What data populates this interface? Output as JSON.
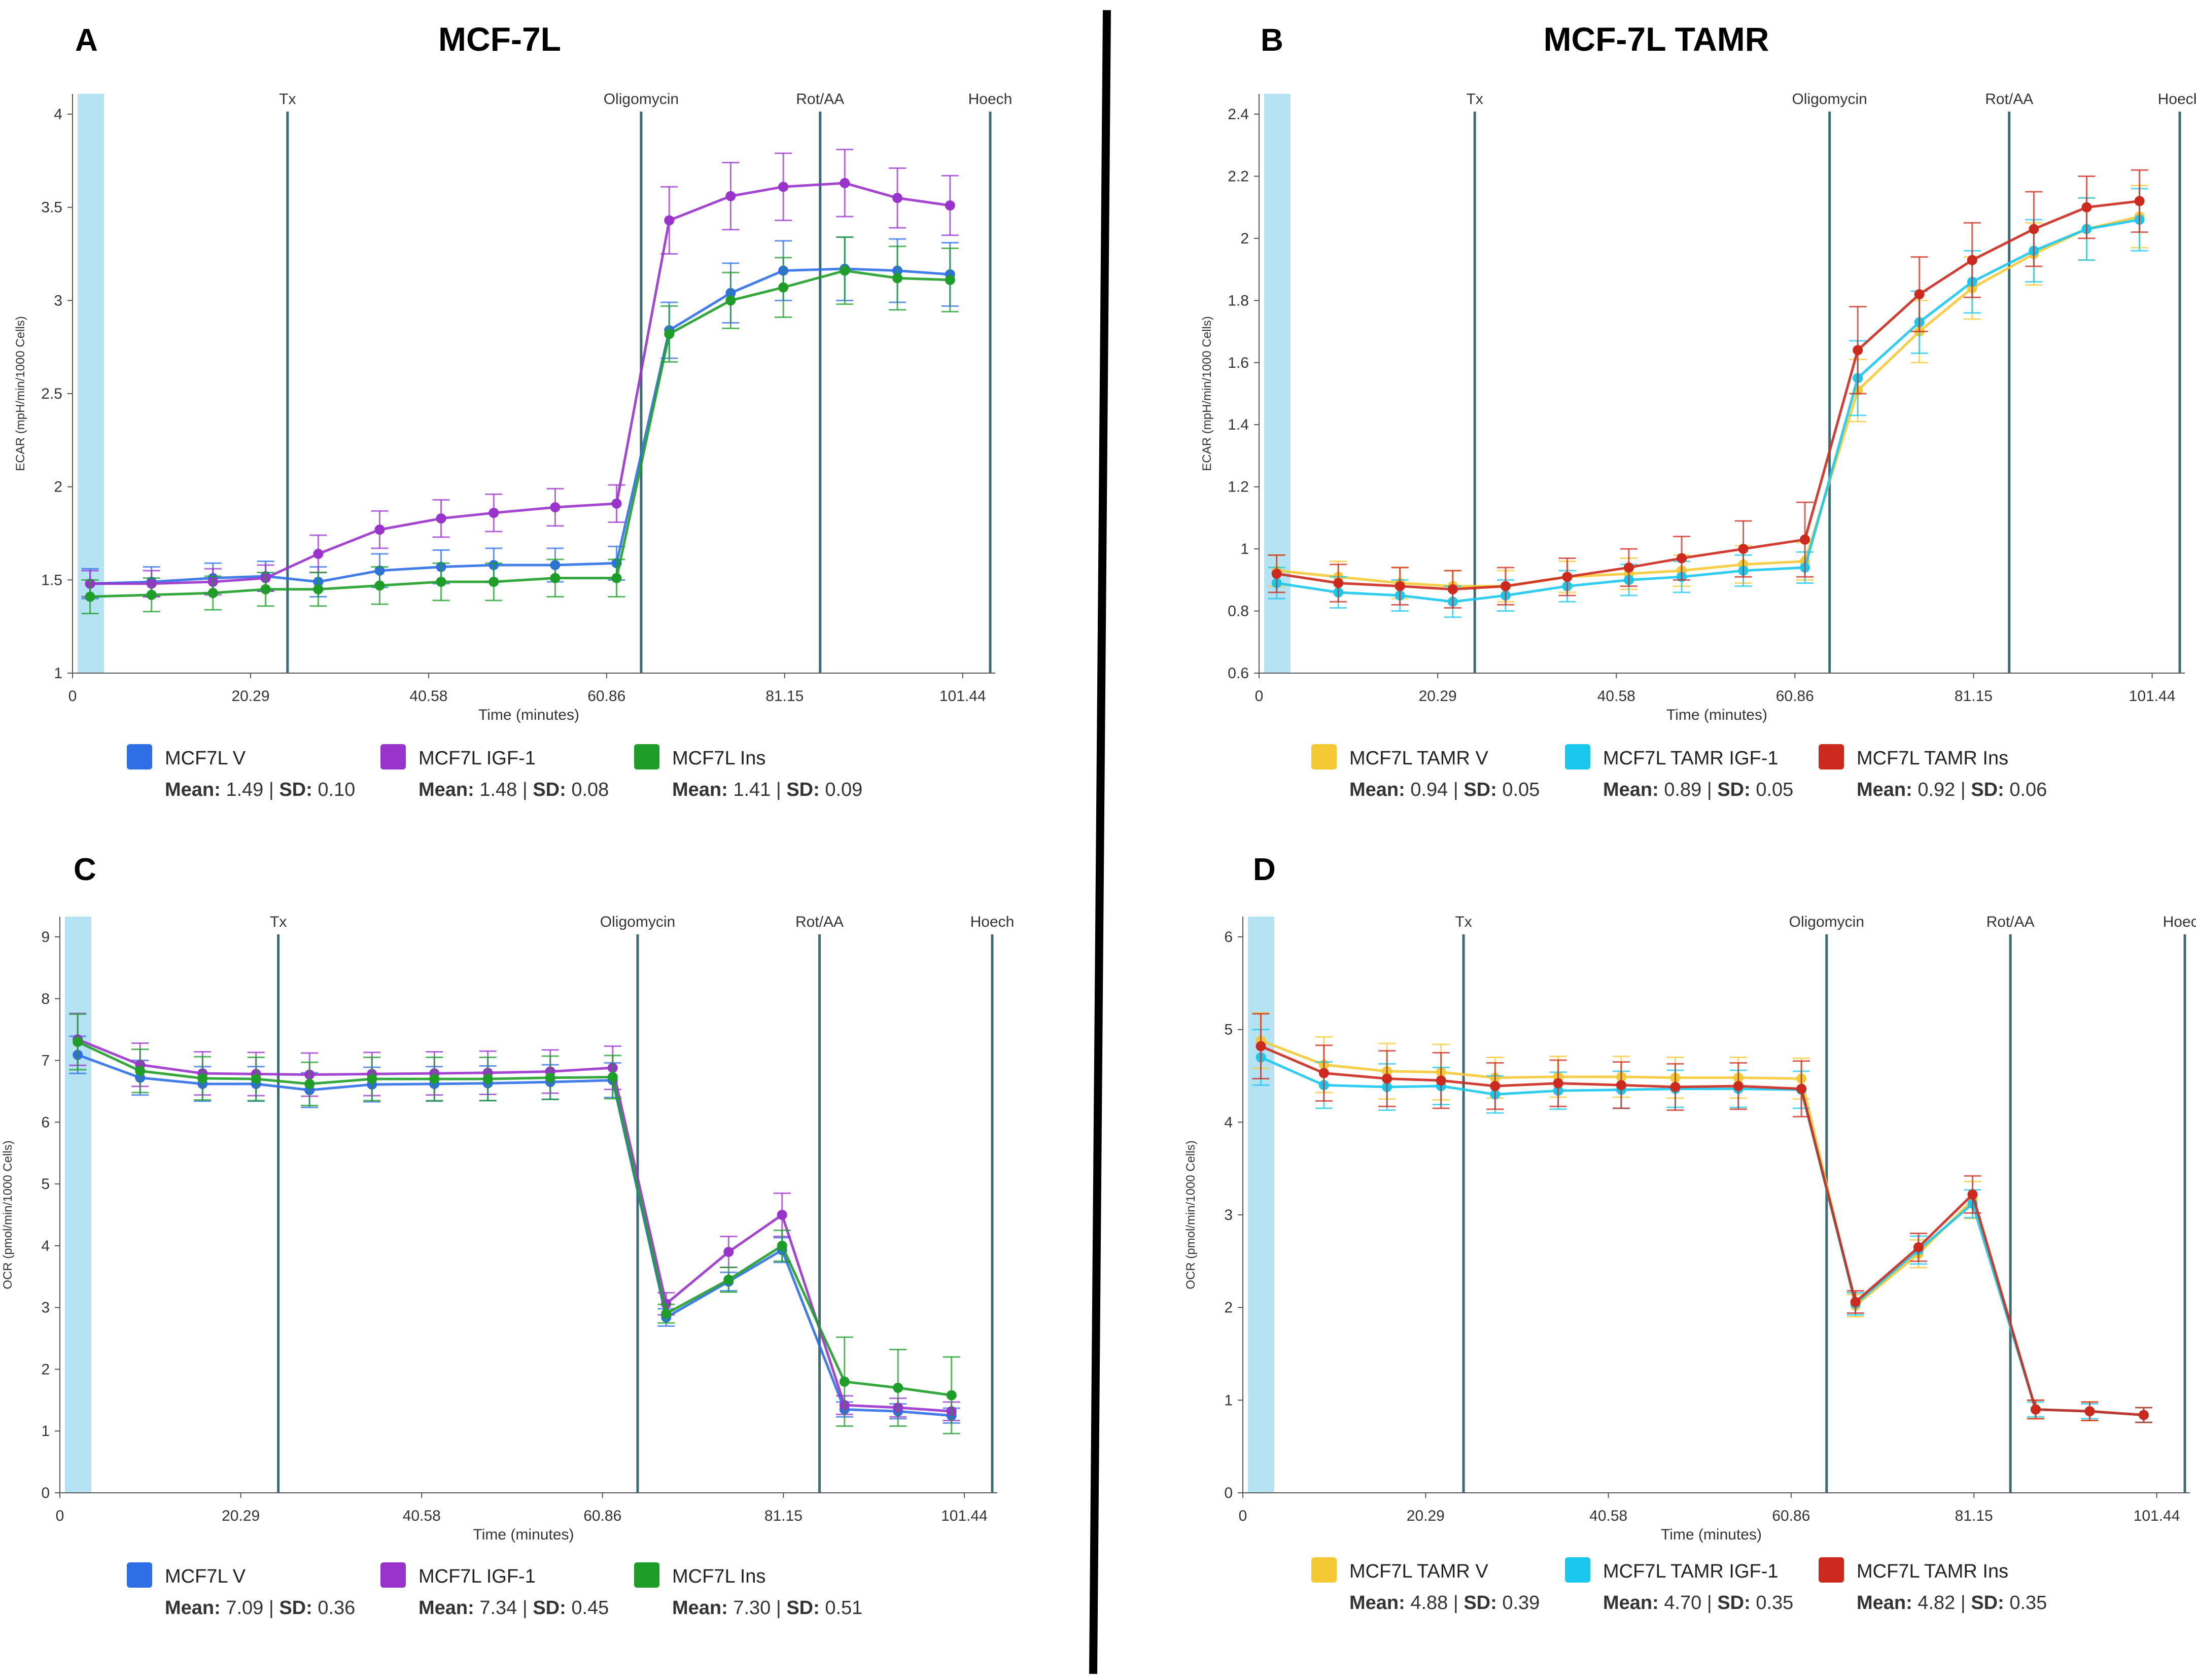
{
  "panels": [
    {
      "letter": "A",
      "title": "MCF-7L",
      "chart_data": {
        "type": "line",
        "ylabel": "ECAR (mpH/min/1000 Cells)",
        "xlabel": "Time (minutes)",
        "xlim": [
          0,
          104
        ],
        "ylim": [
          1,
          4
        ],
        "yticks": [
          1,
          1.5,
          2,
          2.5,
          3,
          3.5,
          4
        ],
        "xticks": [
          0,
          20.29,
          40.58,
          60.86,
          81.15,
          101.44
        ],
        "x": [
          2,
          9,
          16,
          22,
          28,
          35,
          42,
          48,
          55,
          62,
          68,
          75,
          81,
          88,
          94,
          100
        ],
        "injections": [
          {
            "label": "Tx",
            "x": 24.5
          },
          {
            "label": "Oligomycin",
            "x": 64.8
          },
          {
            "label": "Rot/AA",
            "x": 85.2
          },
          {
            "label": "Hoech",
            "x": 104.8
          }
        ],
        "series": [
          {
            "name": "MCF7L V",
            "color": "#2e6fe6",
            "mean": "1.49",
            "sd": "0.10",
            "values": [
              1.48,
              1.49,
              1.51,
              1.52,
              1.49,
              1.55,
              1.57,
              1.58,
              1.58,
              1.59,
              2.84,
              3.04,
              3.16,
              3.17,
              3.16,
              3.14
            ],
            "err": [
              0.08,
              0.08,
              0.08,
              0.08,
              0.08,
              0.09,
              0.09,
              0.09,
              0.09,
              0.09,
              0.15,
              0.16,
              0.16,
              0.17,
              0.17,
              0.17
            ]
          },
          {
            "name": "MCF7L IGF-1",
            "color": "#9933cc",
            "mean": "1.48",
            "sd": "0.08",
            "values": [
              1.48,
              1.48,
              1.49,
              1.51,
              1.64,
              1.77,
              1.83,
              1.86,
              1.89,
              1.91,
              3.43,
              3.56,
              3.61,
              3.63,
              3.55,
              3.51
            ],
            "err": [
              0.07,
              0.07,
              0.07,
              0.07,
              0.1,
              0.1,
              0.1,
              0.1,
              0.1,
              0.1,
              0.18,
              0.18,
              0.18,
              0.18,
              0.16,
              0.16
            ]
          },
          {
            "name": "MCF7L Ins",
            "color": "#1e9e28",
            "mean": "1.41",
            "sd": "0.09",
            "values": [
              1.41,
              1.42,
              1.43,
              1.45,
              1.45,
              1.47,
              1.49,
              1.49,
              1.51,
              1.51,
              2.82,
              3.0,
              3.07,
              3.16,
              3.12,
              3.11
            ],
            "err": [
              0.09,
              0.09,
              0.09,
              0.09,
              0.09,
              0.1,
              0.1,
              0.1,
              0.1,
              0.1,
              0.15,
              0.15,
              0.16,
              0.18,
              0.17,
              0.17
            ]
          }
        ]
      }
    },
    {
      "letter": "B",
      "title": "MCF-7L TAMR",
      "chart_data": {
        "type": "line",
        "ylabel": "ECAR (mpH/min/1000 Cells)",
        "xlabel": "Time (minutes)",
        "xlim": [
          0,
          104
        ],
        "ylim": [
          0.6,
          2.4
        ],
        "yticks": [
          0.6,
          0.8,
          1,
          1.2,
          1.4,
          1.6,
          1.8,
          2,
          2.2,
          2.4
        ],
        "xticks": [
          0,
          20.29,
          40.58,
          60.86,
          81.15,
          101.44
        ],
        "x": [
          2,
          9,
          16,
          22,
          28,
          35,
          42,
          48,
          55,
          62,
          68,
          75,
          81,
          88,
          94,
          100
        ],
        "injections": [
          {
            "label": "Tx",
            "x": 24.5
          },
          {
            "label": "Oligomycin",
            "x": 64.8
          },
          {
            "label": "Rot/AA",
            "x": 85.2
          },
          {
            "label": "Hoech",
            "x": 104.8
          }
        ],
        "series": [
          {
            "name": "MCF7L TAMR V",
            "color": "#f5c933",
            "mean": "0.94",
            "sd": "0.05",
            "values": [
              0.93,
              0.91,
              0.89,
              0.88,
              0.88,
              0.91,
              0.92,
              0.93,
              0.95,
              0.96,
              1.51,
              1.7,
              1.84,
              1.95,
              2.03,
              2.07
            ],
            "err": [
              0.05,
              0.05,
              0.05,
              0.05,
              0.05,
              0.05,
              0.05,
              0.05,
              0.06,
              0.06,
              0.1,
              0.1,
              0.1,
              0.1,
              0.1,
              0.1
            ]
          },
          {
            "name": "MCF7L TAMR IGF-1",
            "color": "#1ac8ee",
            "mean": "0.89",
            "sd": "0.05",
            "values": [
              0.89,
              0.86,
              0.85,
              0.83,
              0.85,
              0.88,
              0.9,
              0.91,
              0.93,
              0.94,
              1.55,
              1.73,
              1.86,
              1.96,
              2.03,
              2.06
            ],
            "err": [
              0.05,
              0.05,
              0.05,
              0.05,
              0.05,
              0.05,
              0.05,
              0.05,
              0.05,
              0.05,
              0.12,
              0.1,
              0.1,
              0.1,
              0.1,
              0.1
            ]
          },
          {
            "name": "MCF7L TAMR Ins",
            "color": "#cc2a1e",
            "mean": "0.92",
            "sd": "0.06",
            "values": [
              0.92,
              0.89,
              0.88,
              0.87,
              0.88,
              0.91,
              0.94,
              0.97,
              1.0,
              1.03,
              1.64,
              1.82,
              1.93,
              2.03,
              2.1,
              2.12
            ],
            "err": [
              0.06,
              0.06,
              0.06,
              0.06,
              0.06,
              0.06,
              0.06,
              0.07,
              0.09,
              0.12,
              0.14,
              0.12,
              0.12,
              0.12,
              0.1,
              0.1
            ]
          }
        ]
      }
    },
    {
      "letter": "C",
      "title": "",
      "chart_data": {
        "type": "line",
        "ylabel": "OCR (pmol/min/1000 Cells)",
        "xlabel": "Time (minutes)",
        "xlim": [
          0,
          104
        ],
        "ylim": [
          0,
          9
        ],
        "yticks": [
          0,
          1,
          2,
          3,
          4,
          5,
          6,
          7,
          8,
          9
        ],
        "xticks": [
          0,
          20.29,
          40.58,
          60.86,
          81.15,
          101.44
        ],
        "x": [
          2,
          9,
          16,
          22,
          28,
          35,
          42,
          48,
          55,
          62,
          68,
          75,
          81,
          88,
          94,
          100
        ],
        "injections": [
          {
            "label": "Tx",
            "x": 24.5
          },
          {
            "label": "Oligomycin",
            "x": 64.8
          },
          {
            "label": "Rot/AA",
            "x": 85.2
          },
          {
            "label": "Hoech",
            "x": 104.8
          }
        ],
        "series": [
          {
            "name": "MCF7L V",
            "color": "#2e6fe6",
            "mean": "7.09",
            "sd": "0.36",
            "values": [
              7.09,
              6.72,
              6.62,
              6.62,
              6.52,
              6.61,
              6.62,
              6.63,
              6.65,
              6.68,
              2.84,
              3.42,
              3.93,
              1.35,
              1.32,
              1.25
            ],
            "err": [
              0.3,
              0.28,
              0.28,
              0.28,
              0.28,
              0.28,
              0.28,
              0.28,
              0.28,
              0.28,
              0.14,
              0.15,
              0.2,
              0.12,
              0.12,
              0.12
            ]
          },
          {
            "name": "MCF7L IGF-1",
            "color": "#9933cc",
            "mean": "7.34",
            "sd": "0.45",
            "values": [
              7.34,
              6.93,
              6.79,
              6.78,
              6.77,
              6.78,
              6.79,
              6.8,
              6.82,
              6.88,
              3.06,
              3.9,
              4.5,
              1.42,
              1.38,
              1.32
            ],
            "err": [
              0.42,
              0.35,
              0.35,
              0.35,
              0.35,
              0.35,
              0.35,
              0.35,
              0.35,
              0.35,
              0.18,
              0.25,
              0.35,
              0.15,
              0.15,
              0.15
            ]
          },
          {
            "name": "MCF7L Ins",
            "color": "#1e9e28",
            "mean": "7.30",
            "sd": "0.51",
            "values": [
              7.3,
              6.83,
              6.71,
              6.7,
              6.62,
              6.7,
              6.7,
              6.7,
              6.72,
              6.73,
              2.9,
              3.45,
              4.0,
              1.8,
              1.7,
              1.58
            ],
            "err": [
              0.45,
              0.35,
              0.35,
              0.35,
              0.35,
              0.35,
              0.35,
              0.35,
              0.35,
              0.35,
              0.15,
              0.2,
              0.25,
              0.72,
              0.62,
              0.62
            ]
          }
        ]
      }
    },
    {
      "letter": "D",
      "title": "",
      "chart_data": {
        "type": "line",
        "ylabel": "OCR (pmol/min/1000 Cells)",
        "xlabel": "Time (minutes)",
        "xlim": [
          0,
          104
        ],
        "ylim": [
          0,
          6
        ],
        "yticks": [
          0,
          1,
          2,
          3,
          4,
          5,
          6
        ],
        "xticks": [
          0,
          20.29,
          40.58,
          60.86,
          81.15,
          101.44
        ],
        "x": [
          2,
          9,
          16,
          22,
          28,
          35,
          42,
          48,
          55,
          62,
          68,
          75,
          81,
          88,
          94,
          100
        ],
        "injections": [
          {
            "label": "Tx",
            "x": 24.5
          },
          {
            "label": "Oligomycin",
            "x": 64.8
          },
          {
            "label": "Rot/AA",
            "x": 85.2
          },
          {
            "label": "Hoech",
            "x": 104.8
          }
        ],
        "series": [
          {
            "name": "MCF7L TAMR V",
            "color": "#f5c933",
            "mean": "4.88",
            "sd": "0.39",
            "values": [
              4.88,
              4.62,
              4.55,
              4.54,
              4.48,
              4.49,
              4.49,
              4.48,
              4.48,
              4.47,
              2.02,
              2.58,
              3.16,
              0.9,
              0.88,
              0.84
            ],
            "err": [
              0.3,
              0.3,
              0.3,
              0.3,
              0.22,
              0.22,
              0.22,
              0.22,
              0.22,
              0.22,
              0.12,
              0.15,
              0.2,
              0.1,
              0.1,
              0.08
            ]
          },
          {
            "name": "MCF7L TAMR IGF-1",
            "color": "#1ac8ee",
            "mean": "4.70",
            "sd": "0.35",
            "values": [
              4.7,
              4.4,
              4.38,
              4.39,
              4.3,
              4.34,
              4.35,
              4.36,
              4.36,
              4.35,
              2.04,
              2.62,
              3.12,
              0.9,
              0.88,
              0.84
            ],
            "err": [
              0.3,
              0.25,
              0.25,
              0.2,
              0.2,
              0.2,
              0.2,
              0.2,
              0.2,
              0.2,
              0.12,
              0.15,
              0.15,
              0.08,
              0.08,
              0.08
            ]
          },
          {
            "name": "MCF7L TAMR Ins",
            "color": "#cc2a1e",
            "mean": "4.82",
            "sd": "0.35",
            "values": [
              4.82,
              4.53,
              4.47,
              4.45,
              4.39,
              4.42,
              4.4,
              4.38,
              4.39,
              4.36,
              2.06,
              2.65,
              3.22,
              0.9,
              0.88,
              0.84
            ],
            "err": [
              0.35,
              0.3,
              0.3,
              0.3,
              0.25,
              0.25,
              0.25,
              0.25,
              0.25,
              0.3,
              0.12,
              0.15,
              0.2,
              0.1,
              0.1,
              0.08
            ]
          }
        ]
      }
    }
  ]
}
